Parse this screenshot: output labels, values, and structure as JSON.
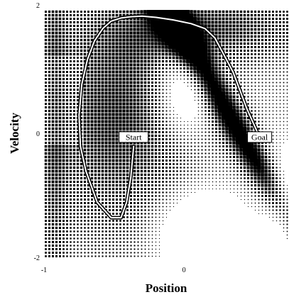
{
  "chart_data": {
    "type": "heatmap",
    "xlabel": "Position",
    "ylabel": "Velocity",
    "xlim": [
      -1,
      0.75
    ],
    "ylim": [
      -2,
      2
    ],
    "x_ticks": [
      {
        "value": -1,
        "label": "-1"
      },
      {
        "value": 0,
        "label": "0"
      }
    ],
    "y_ticks": [
      {
        "value": 2,
        "label": "2"
      },
      {
        "value": 0,
        "label": "0"
      },
      {
        "value": -2,
        "label": "-2"
      }
    ],
    "grid": false,
    "colors": {
      "cell": "#000000",
      "trajectory_outline": "#000000",
      "trajectory_fill": "#ffffff"
    },
    "trajectory": {
      "x": [
        -0.36,
        -0.38,
        -0.41,
        -0.45,
        -0.52,
        -0.62,
        -0.7,
        -0.74,
        -0.75,
        -0.73,
        -0.69,
        -0.64,
        -0.58,
        -0.52,
        -0.45,
        -0.38,
        -0.3,
        -0.2,
        -0.08,
        0.05,
        0.15,
        0.22,
        0.28,
        0.35,
        0.4,
        0.45,
        0.5,
        0.54
      ],
      "y": [
        -0.2,
        -0.7,
        -1.1,
        -1.35,
        -1.35,
        -1.1,
        -0.6,
        -0.2,
        0.3,
        0.8,
        1.2,
        1.5,
        1.7,
        1.82,
        1.87,
        1.89,
        1.9,
        1.88,
        1.84,
        1.78,
        1.7,
        1.55,
        1.3,
        1.0,
        0.7,
        0.4,
        0.15,
        -0.05
      ]
    },
    "annotations": [
      {
        "text": "Start",
        "x": -0.36,
        "y": -0.05
      },
      {
        "text": "Goal",
        "x": 0.54,
        "y": -0.05
      }
    ]
  }
}
